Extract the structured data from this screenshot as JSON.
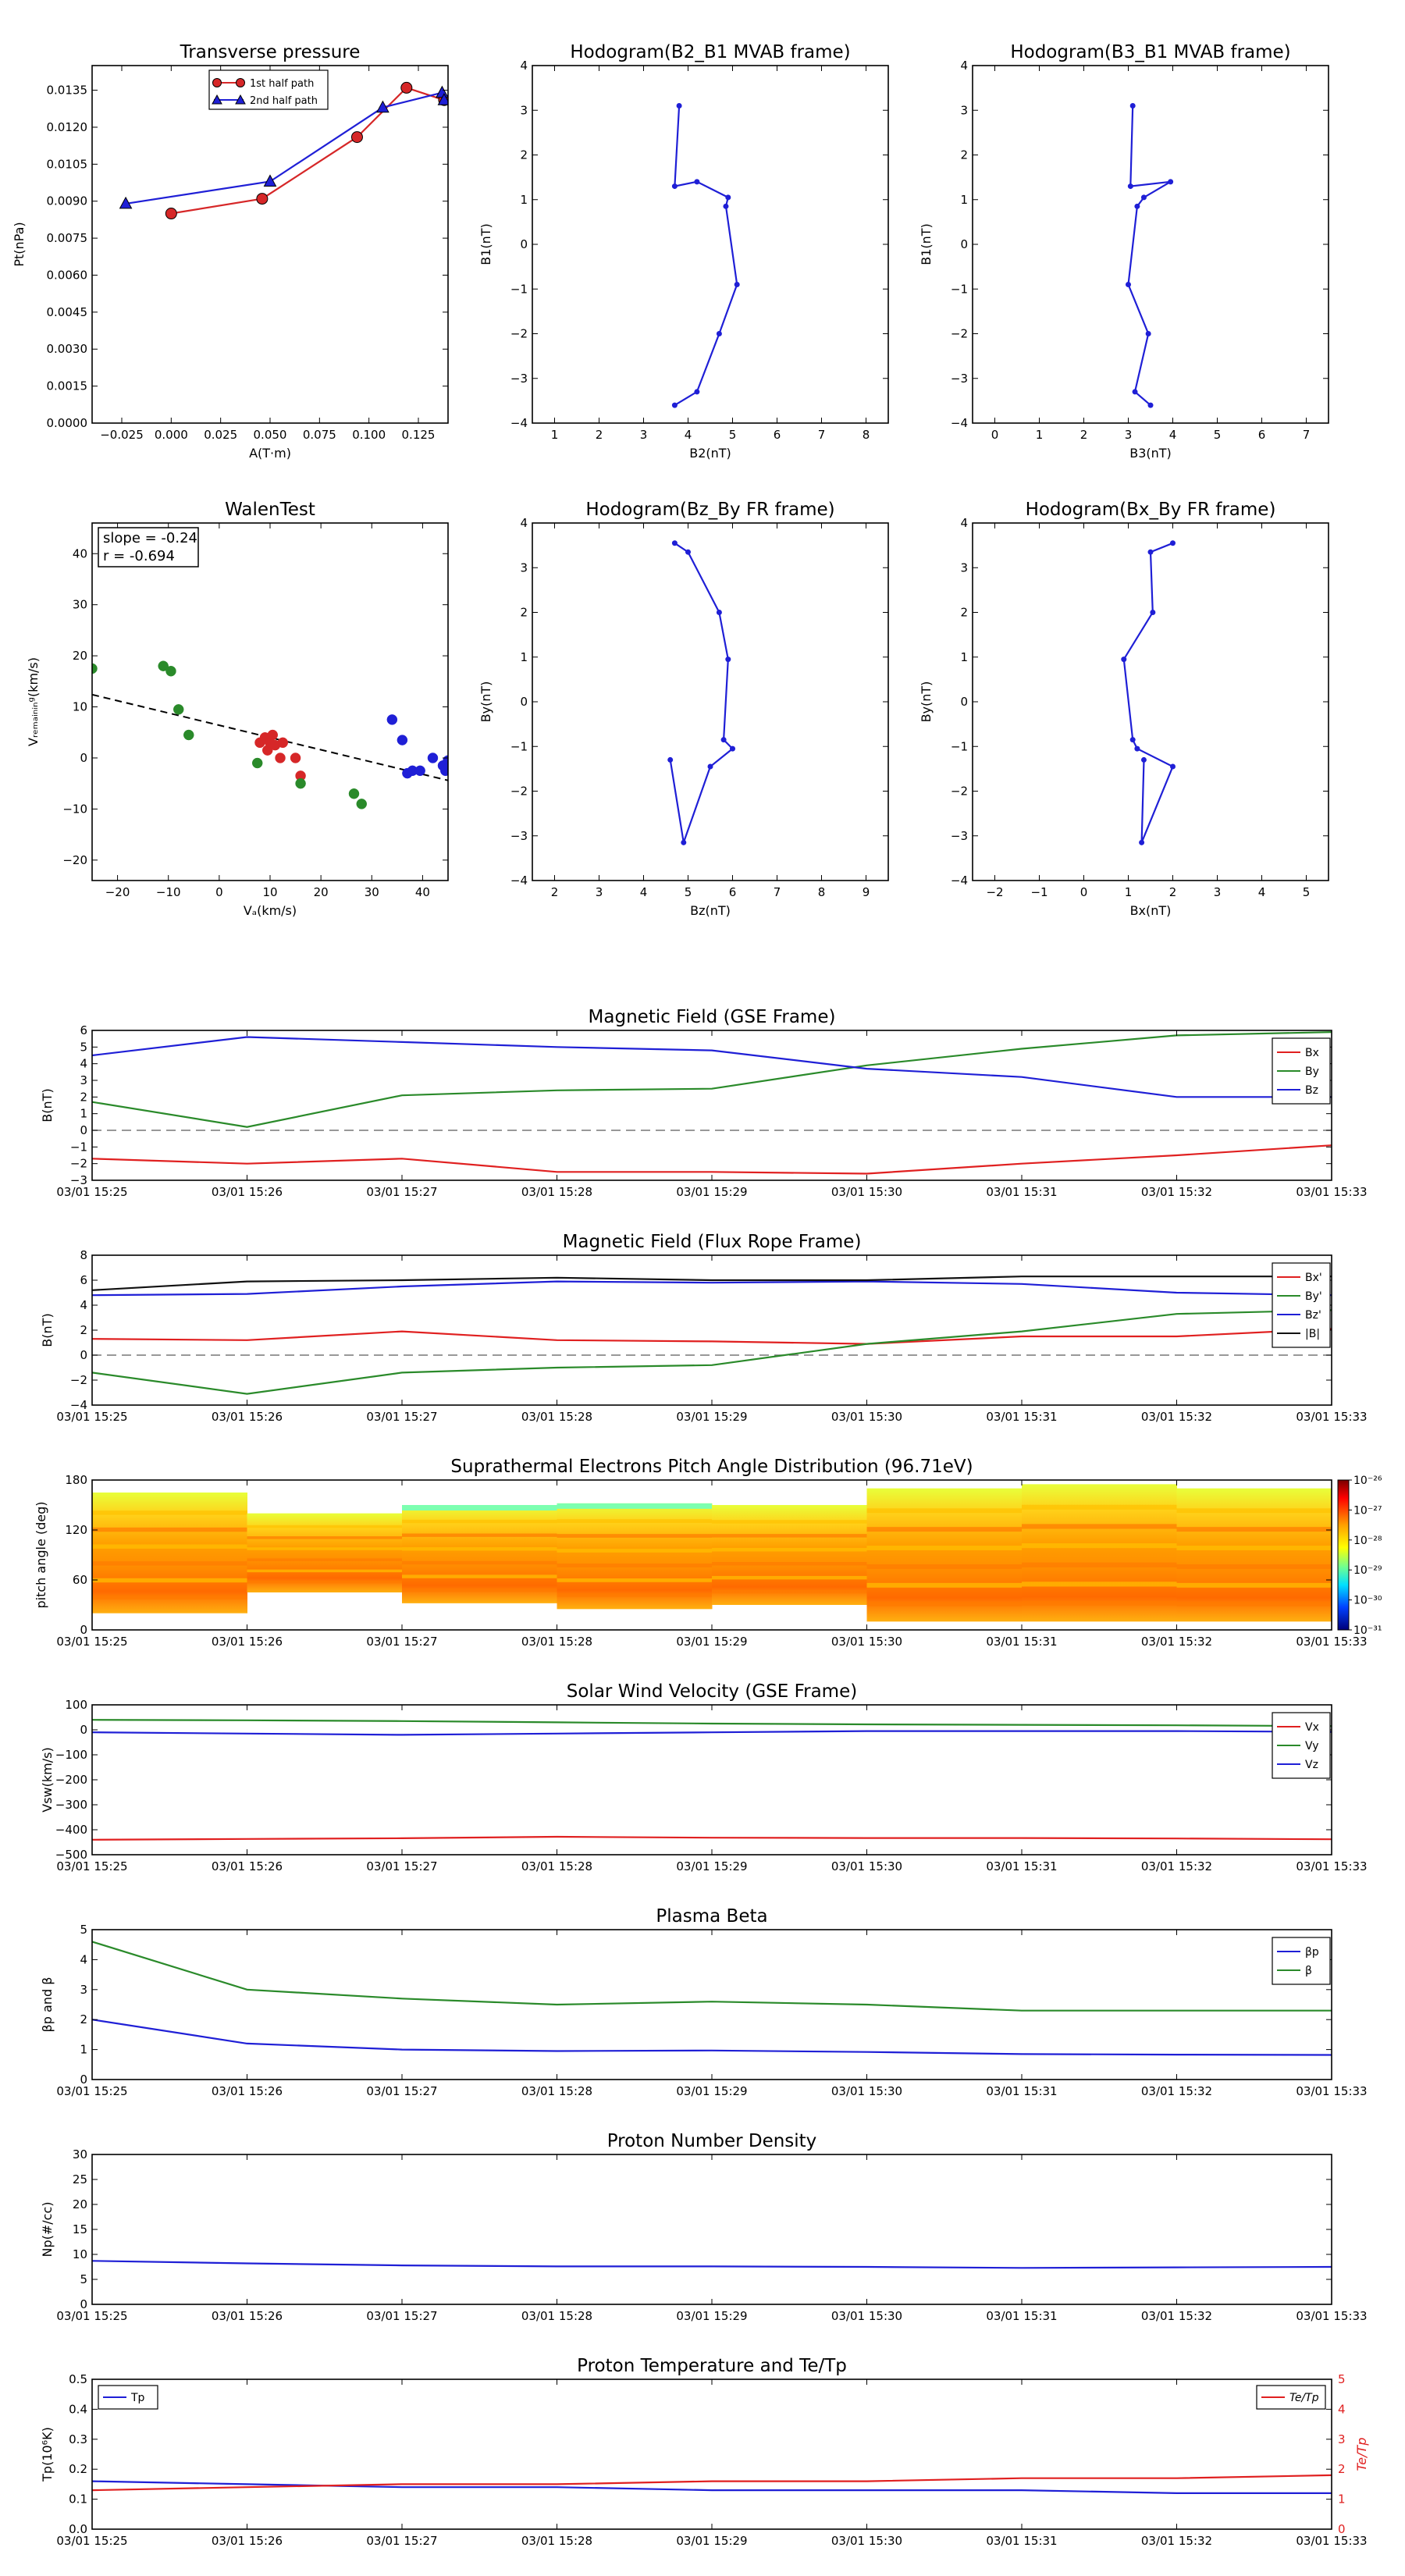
{
  "time_axis": {
    "ticks": [
      "03/01 15:25",
      "03/01 15:26",
      "03/01 15:27",
      "03/01 15:28",
      "03/01 15:29",
      "03/01 15:30",
      "03/01 15:31",
      "03/01 15:32",
      "03/01 15:33"
    ]
  },
  "chart_data": [
    {
      "id": "pt",
      "type": "line",
      "title": "Transverse pressure",
      "xlabel": "A(T·m)",
      "ylabel": "Pt(nPa)",
      "xlim": [
        -0.04,
        0.14
      ],
      "ylim": [
        0,
        0.0145
      ],
      "xticks": [
        -0.025,
        0.0,
        0.025,
        0.05,
        0.075,
        0.1,
        0.125
      ],
      "xtick_labels": [
        "−0.025",
        "0.000",
        "0.025",
        "0.050",
        "0.075",
        "0.100",
        "0.125"
      ],
      "yticks": [
        0.0,
        0.0015,
        0.003,
        0.0045,
        0.006,
        0.0075,
        0.009,
        0.0105,
        0.012,
        0.0135
      ],
      "ytick_labels": [
        "0.0000",
        "0.0015",
        "0.0030",
        "0.0045",
        "0.0060",
        "0.0075",
        "0.0090",
        "0.0105",
        "0.0120",
        "0.0135"
      ],
      "legend": "top-center",
      "series": [
        {
          "name": "1st half path",
          "color": "#d62728",
          "marker": "circle",
          "x": [
            0.0,
            0.046,
            0.094,
            0.119,
            0.138
          ],
          "y": [
            0.0085,
            0.0091,
            0.0116,
            0.0136,
            0.0131
          ]
        },
        {
          "name": "2nd half path",
          "color": "#1f1fd6",
          "marker": "triangle",
          "x": [
            -0.023,
            0.05,
            0.107,
            0.137,
            0.138
          ],
          "y": [
            0.0089,
            0.0098,
            0.0128,
            0.0134,
            0.0131
          ]
        }
      ]
    },
    {
      "id": "h1",
      "type": "line",
      "title": "Hodogram(B2_B1 MVAB frame)",
      "xlabel": "B2(nT)",
      "ylabel": "B1(nT)",
      "xlim": [
        0.5,
        8.5
      ],
      "ylim": [
        -4,
        4
      ],
      "xticks": [
        1,
        2,
        3,
        4,
        5,
        6,
        7,
        8
      ],
      "xtick_labels": [
        "1",
        "2",
        "3",
        "4",
        "5",
        "6",
        "7",
        "8"
      ],
      "yticks": [
        -4,
        -3,
        -2,
        -1,
        0,
        1,
        2,
        3,
        4
      ],
      "ytick_labels": [
        "−4",
        "−3",
        "−2",
        "−1",
        "0",
        "1",
        "2",
        "3",
        "4"
      ],
      "series": [
        {
          "color": "#1f1fd6",
          "marker": "dot",
          "x": [
            3.8,
            3.7,
            4.2,
            4.9,
            4.85,
            5.1,
            4.7,
            4.2,
            3.7
          ],
          "y": [
            3.1,
            1.3,
            1.4,
            1.05,
            0.85,
            -0.9,
            -2.0,
            -3.3,
            -3.6
          ]
        }
      ]
    },
    {
      "id": "h2",
      "type": "line",
      "title": "Hodogram(B3_B1 MVAB frame)",
      "xlabel": "B3(nT)",
      "ylabel": "B1(nT)",
      "xlim": [
        -0.5,
        7.5
      ],
      "ylim": [
        -4,
        4
      ],
      "xticks": [
        0,
        1,
        2,
        3,
        4,
        5,
        6,
        7
      ],
      "xtick_labels": [
        "0",
        "1",
        "2",
        "3",
        "4",
        "5",
        "6",
        "7"
      ],
      "yticks": [
        -4,
        -3,
        -2,
        -1,
        0,
        1,
        2,
        3,
        4
      ],
      "ytick_labels": [
        "−4",
        "−3",
        "−2",
        "−1",
        "0",
        "1",
        "2",
        "3",
        "4"
      ],
      "series": [
        {
          "color": "#1f1fd6",
          "marker": "dot",
          "x": [
            3.1,
            3.05,
            3.95,
            3.35,
            3.2,
            3.0,
            3.45,
            3.15,
            3.5
          ],
          "y": [
            3.1,
            1.3,
            1.4,
            1.05,
            0.85,
            -0.9,
            -2.0,
            -3.3,
            -3.6
          ]
        }
      ]
    },
    {
      "id": "walen",
      "type": "scatter",
      "title": "WalenTest",
      "xlabel": "Vₐ(km/s)",
      "ylabel": "Vᵣₑₘₐᵢₙᵢₙᵍ(km/s)",
      "xlim": [
        -25,
        45
      ],
      "ylim": [
        -24,
        46
      ],
      "xticks": [
        -20,
        -10,
        0,
        10,
        20,
        30,
        40
      ],
      "xtick_labels": [
        "−20",
        "−10",
        "0",
        "10",
        "20",
        "30",
        "40"
      ],
      "yticks": [
        -20,
        -10,
        0,
        10,
        20,
        30,
        40
      ],
      "ytick_labels": [
        "−20",
        "−10",
        "0",
        "10",
        "20",
        "30",
        "40"
      ],
      "annotation": [
        "slope = -0.24",
        "r = -0.694"
      ],
      "fit_line": {
        "x": [
          -25,
          45
        ],
        "y": [
          12.4,
          -4.4
        ]
      },
      "series": [
        {
          "color": "#d62728",
          "x": [
            8,
            9,
            9.5,
            10,
            10.5,
            11,
            12,
            12.5,
            15,
            16
          ],
          "y": [
            3,
            4,
            1.5,
            3,
            4.5,
            2.5,
            0,
            3,
            0,
            -3.5
          ]
        },
        {
          "color": "#2a8a2a",
          "x": [
            -25,
            -11,
            -9.5,
            -8,
            -6,
            7.5,
            16,
            26.5,
            28
          ],
          "y": [
            17.5,
            18,
            17,
            9.5,
            4.5,
            -1,
            -5,
            -7,
            -9
          ]
        },
        {
          "color": "#1f1fd6",
          "x": [
            34,
            36,
            37,
            38,
            39.5,
            42,
            44,
            44.5,
            45,
            45
          ],
          "y": [
            7.5,
            3.5,
            -3,
            -2.5,
            -2.5,
            0,
            -1.5,
            -2.5,
            -0.5,
            -2
          ]
        }
      ]
    },
    {
      "id": "h3",
      "type": "line",
      "title": "Hodogram(Bz_By FR frame)",
      "xlabel": "Bz(nT)",
      "ylabel": "By(nT)",
      "xlim": [
        1.5,
        9.5
      ],
      "ylim": [
        -4,
        4
      ],
      "xticks": [
        2,
        3,
        4,
        5,
        6,
        7,
        8,
        9
      ],
      "xtick_labels": [
        "2",
        "3",
        "4",
        "5",
        "6",
        "7",
        "8",
        "9"
      ],
      "yticks": [
        -4,
        -3,
        -2,
        -1,
        0,
        1,
        2,
        3,
        4
      ],
      "ytick_labels": [
        "−4",
        "−3",
        "−2",
        "−1",
        "0",
        "1",
        "2",
        "3",
        "4"
      ],
      "series": [
        {
          "color": "#1f1fd6",
          "marker": "dot",
          "x": [
            4.7,
            5.0,
            5.7,
            5.9,
            5.8,
            6.0,
            5.5,
            4.9,
            4.6
          ],
          "y": [
            3.55,
            3.35,
            2.0,
            0.95,
            -0.85,
            -1.05,
            -1.45,
            -3.15,
            -1.3
          ]
        }
      ]
    },
    {
      "id": "h4",
      "type": "line",
      "title": "Hodogram(Bx_By FR frame)",
      "xlabel": "Bx(nT)",
      "ylabel": "By(nT)",
      "xlim": [
        -2.5,
        5.5
      ],
      "ylim": [
        -4,
        4
      ],
      "xticks": [
        -2,
        -1,
        0,
        1,
        2,
        3,
        4,
        5
      ],
      "xtick_labels": [
        "−2",
        "−1",
        "0",
        "1",
        "2",
        "3",
        "4",
        "5"
      ],
      "yticks": [
        -4,
        -3,
        -2,
        -1,
        0,
        1,
        2,
        3,
        4
      ],
      "ytick_labels": [
        "−4",
        "−3",
        "−2",
        "−1",
        "0",
        "1",
        "2",
        "3",
        "4"
      ],
      "series": [
        {
          "color": "#1f1fd6",
          "marker": "dot",
          "x": [
            2.0,
            1.5,
            1.55,
            0.9,
            1.1,
            1.2,
            2.0,
            1.3,
            1.35
          ],
          "y": [
            3.55,
            3.35,
            2.0,
            0.95,
            -0.85,
            -1.05,
            -1.45,
            -3.15,
            -1.3
          ]
        }
      ]
    },
    {
      "id": "bgse",
      "type": "line",
      "title": "Magnetic Field (GSE Frame)",
      "ylabel": "B(nT)",
      "ylim": [
        -3,
        6
      ],
      "yticks": [
        -3,
        -2,
        -1,
        0,
        1,
        2,
        3,
        4,
        5,
        6
      ],
      "ytick_labels": [
        "−3",
        "−2",
        "−1",
        "0",
        "1",
        "2",
        "3",
        "4",
        "5",
        "6"
      ],
      "zero_line": true,
      "legend": "right",
      "series": [
        {
          "name": "Bx",
          "color": "#e02020",
          "values": [
            -1.7,
            -2.0,
            -1.7,
            -2.5,
            -2.5,
            -2.6,
            -2.0,
            -1.5,
            -0.9
          ]
        },
        {
          "name": "By",
          "color": "#2a8a2a",
          "values": [
            1.7,
            0.2,
            2.1,
            2.4,
            2.5,
            3.9,
            4.9,
            5.7,
            5.9
          ]
        },
        {
          "name": "Bz",
          "color": "#1f1fd6",
          "values": [
            4.5,
            5.6,
            5.3,
            5.0,
            4.8,
            3.7,
            3.2,
            2.0,
            2.0
          ]
        }
      ]
    },
    {
      "id": "bfr",
      "type": "line",
      "title": "Magnetic Field (Flux Rope Frame)",
      "ylabel": "B(nT)",
      "ylim": [
        -4,
        8
      ],
      "yticks": [
        -4,
        -2,
        0,
        2,
        4,
        6,
        8
      ],
      "ytick_labels": [
        "−4",
        "−2",
        "0",
        "2",
        "4",
        "6",
        "8"
      ],
      "zero_line": true,
      "legend": "right",
      "series": [
        {
          "name": "Bx'",
          "color": "#e02020",
          "values": [
            1.3,
            1.2,
            1.9,
            1.2,
            1.1,
            0.9,
            1.5,
            1.5,
            2.1
          ]
        },
        {
          "name": "By'",
          "color": "#2a8a2a",
          "values": [
            -1.4,
            -3.1,
            -1.4,
            -1.0,
            -0.8,
            0.9,
            1.9,
            3.3,
            3.6
          ]
        },
        {
          "name": "Bz'",
          "color": "#1f1fd6",
          "values": [
            4.8,
            4.9,
            5.5,
            5.9,
            5.8,
            5.9,
            5.7,
            5.0,
            4.8
          ]
        },
        {
          "name": "|B|",
          "color": "#111111",
          "values": [
            5.2,
            5.9,
            6.0,
            6.2,
            6.0,
            6.0,
            6.3,
            6.3,
            6.3
          ]
        }
      ]
    },
    {
      "id": "pad",
      "type": "heatmap",
      "title": "Suprathermal Electrons Pitch Angle Distribution (96.71eV)",
      "ylabel": "pitch angle (deg)",
      "ylim": [
        0,
        180
      ],
      "yticks": [
        0,
        60,
        120,
        180
      ],
      "ytick_labels": [
        "0",
        "60",
        "120",
        "180"
      ],
      "colorbar": {
        "labels": [
          "10⁻²⁶",
          "10⁻²⁷",
          "10⁻²⁸",
          "10⁻²⁹",
          "10⁻³⁰",
          "10⁻³¹"
        ]
      },
      "columns": [
        {
          "lo": 20,
          "hi": 165
        },
        {
          "lo": 45,
          "hi": 140
        },
        {
          "lo": 32,
          "hi": 150,
          "top_band": "cyan"
        },
        {
          "lo": 25,
          "hi": 152,
          "top_band": "cyan"
        },
        {
          "lo": 30,
          "hi": 150
        },
        {
          "lo": 10,
          "hi": 170
        },
        {
          "lo": 10,
          "hi": 175
        },
        {
          "lo": 10,
          "hi": 170
        }
      ]
    },
    {
      "id": "vsw",
      "type": "line",
      "title": "Solar Wind Velocity (GSE Frame)",
      "ylabel": "Vsw(km/s)",
      "ylim": [
        -500,
        100
      ],
      "yticks": [
        -500,
        -400,
        -300,
        -200,
        -100,
        0,
        100
      ],
      "ytick_labels": [
        "−500",
        "−400",
        "−300",
        "−200",
        "−100",
        "0",
        "100"
      ],
      "legend": "right",
      "series": [
        {
          "name": "Vx",
          "color": "#e02020",
          "values": [
            -440,
            -437,
            -434,
            -428,
            -432,
            -433,
            -433,
            -435,
            -438
          ]
        },
        {
          "name": "Vy",
          "color": "#2a8a2a",
          "values": [
            40,
            38,
            35,
            30,
            25,
            22,
            20,
            18,
            15
          ]
        },
        {
          "name": "Vz",
          "color": "#1f1fd6",
          "values": [
            -10,
            -15,
            -20,
            -15,
            -10,
            -5,
            -5,
            -5,
            -8
          ]
        }
      ]
    },
    {
      "id": "beta",
      "type": "line",
      "title": "Plasma Beta",
      "ylabel": "βp and β",
      "ylim": [
        0,
        5
      ],
      "yticks": [
        0,
        1,
        2,
        3,
        4,
        5
      ],
      "ytick_labels": [
        "0",
        "1",
        "2",
        "3",
        "4",
        "5"
      ],
      "legend": "right",
      "series": [
        {
          "name": "βp",
          "color": "#1f1fd6",
          "values": [
            2.0,
            1.2,
            1.0,
            0.95,
            0.97,
            0.92,
            0.85,
            0.83,
            0.82
          ]
        },
        {
          "name": "β",
          "color": "#2a8a2a",
          "values": [
            4.6,
            3.0,
            2.7,
            2.5,
            2.6,
            2.5,
            2.3,
            2.3,
            2.3
          ]
        }
      ]
    },
    {
      "id": "np",
      "type": "line",
      "title": "Proton Number Density",
      "ylabel": "Np(#/cc)",
      "ylim": [
        0,
        30
      ],
      "yticks": [
        0,
        5,
        10,
        15,
        20,
        25,
        30
      ],
      "ytick_labels": [
        "0",
        "5",
        "10",
        "15",
        "20",
        "25",
        "30"
      ],
      "series": [
        {
          "color": "#1f1fd6",
          "values": [
            8.7,
            8.2,
            7.8,
            7.6,
            7.6,
            7.5,
            7.3,
            7.4,
            7.5
          ]
        }
      ]
    },
    {
      "id": "tp",
      "type": "line",
      "title": "Proton Temperature and Te/Tp",
      "ylabel": "Tp(10⁶K)",
      "ylim": [
        0,
        0.5
      ],
      "yticks": [
        0,
        0.1,
        0.2,
        0.3,
        0.4,
        0.5
      ],
      "ytick_labels": [
        "0.0",
        "0.1",
        "0.2",
        "0.3",
        "0.4",
        "0.5"
      ],
      "y2label": "Te/Tp",
      "y2lim": [
        0,
        5
      ],
      "y2ticks": [
        0,
        1,
        2,
        3,
        4,
        5
      ],
      "y2tick_labels": [
        "0",
        "1",
        "2",
        "3",
        "4",
        "5"
      ],
      "legend_left": "Tp",
      "legend_right": "Te/Tp",
      "series": [
        {
          "name": "Tp",
          "color": "#1f1fd6",
          "axis": "left",
          "values": [
            0.16,
            0.15,
            0.14,
            0.14,
            0.13,
            0.13,
            0.13,
            0.12,
            0.12
          ]
        },
        {
          "name": "Te/Tp",
          "color": "#e02020",
          "axis": "right",
          "values": [
            1.3,
            1.4,
            1.5,
            1.5,
            1.6,
            1.6,
            1.7,
            1.7,
            1.8
          ]
        }
      ]
    }
  ]
}
